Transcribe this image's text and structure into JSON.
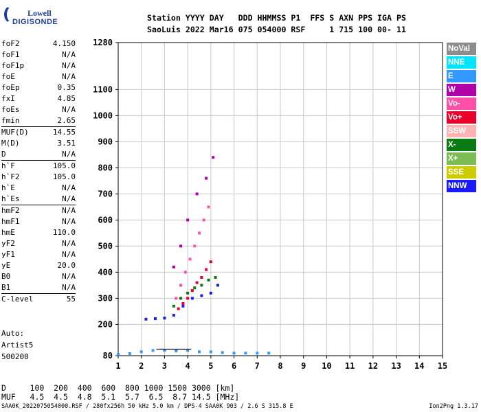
{
  "logo": {
    "line1": "Lowell",
    "line2": "DIGISONDE"
  },
  "header": {
    "labels": "Station YYYY DAY   DDD HHMMSS P1  FFS S AXN PPS IGA PS",
    "values": "SaoLuis 2022 Mar16 075 054000 RSF     1 715 100 00- 11"
  },
  "params": [
    [
      {
        "k": "foF2",
        "v": "4.150"
      },
      {
        "k": "foF1",
        "v": "N/A"
      },
      {
        "k": "foF1p",
        "v": "N/A"
      },
      {
        "k": "foE",
        "v": "N/A"
      },
      {
        "k": "foEp",
        "v": "0.35"
      },
      {
        "k": "fxI",
        "v": "4.85"
      },
      {
        "k": "foEs",
        "v": "N/A"
      },
      {
        "k": "fmin",
        "v": "2.65"
      }
    ],
    [
      {
        "k": "MUF(D)",
        "v": "14.55"
      },
      {
        "k": "M(D)",
        "v": "3.51"
      },
      {
        "k": "D",
        "v": "N/A"
      }
    ],
    [
      {
        "k": "h`F",
        "v": "105.0"
      },
      {
        "k": "h`F2",
        "v": "105.0"
      },
      {
        "k": "h`E",
        "v": "N/A"
      },
      {
        "k": "h`Es",
        "v": "N/A"
      }
    ],
    [
      {
        "k": "hmF2",
        "v": "N/A"
      },
      {
        "k": "hmF1",
        "v": "N/A"
      },
      {
        "k": "hmE",
        "v": "110.0"
      },
      {
        "k": "yF2",
        "v": "N/A"
      },
      {
        "k": "yF1",
        "v": "N/A"
      },
      {
        "k": "yE",
        "v": "20.0"
      },
      {
        "k": "B0",
        "v": "N/A"
      },
      {
        "k": "B1",
        "v": "N/A"
      }
    ],
    [
      {
        "k": "C-level",
        "v": "55"
      }
    ]
  ],
  "notes": {
    "auto": "Auto:",
    "artist": "Artist5",
    "code": "500200"
  },
  "legend": [
    {
      "label": "NoVal",
      "color": "#8c8c8c"
    },
    {
      "label": "NNE",
      "color": "#00e5ff"
    },
    {
      "label": "E",
      "color": "#3399ff"
    },
    {
      "label": "W",
      "color": "#b000a8"
    },
    {
      "label": "Vo-",
      "color": "#ff4fa8"
    },
    {
      "label": "Vo+",
      "color": "#e8002a"
    },
    {
      "label": "SSW",
      "color": "#ffb3b3"
    },
    {
      "label": "X-",
      "color": "#0a7a12"
    },
    {
      "label": "X+",
      "color": "#7dbb55"
    },
    {
      "label": "SSE",
      "color": "#cccc00"
    },
    {
      "label": "NNW",
      "color": "#1a1aff"
    }
  ],
  "bottom": {
    "d_row": "D     100  200  400  600  800 1000 1500 3000 [km]",
    "muf_row": "MUF   4.5  4.5  4.8  5.1  5.7  6.5  8.7 14.5 [MHz]"
  },
  "footer": {
    "left": "SAA0K_2022075054000.RSF / 280fx256h 50 kHz 5.0 km / DPS-4 SAA0K 903 / 2.6 S 315.8 E",
    "right": "Ion2Png 1.3.17"
  },
  "chart_data": {
    "type": "scatter",
    "xlabel": "",
    "ylabel": "",
    "xlim": [
      1,
      15
    ],
    "ylim": [
      80,
      1280
    ],
    "x_ticks": [
      1,
      2,
      3,
      4,
      5,
      6,
      7,
      8,
      9,
      10,
      11,
      12,
      13,
      14,
      15
    ],
    "y_ticks": [
      80,
      200,
      300,
      400,
      500,
      600,
      700,
      800,
      900,
      1000,
      1100,
      1280
    ],
    "grid": true,
    "legend_position": "right",
    "trace_x": [
      2.65,
      3.0,
      3.3,
      3.6,
      3.9,
      4.15
    ],
    "trace_y": [
      105,
      105,
      105,
      105,
      105,
      105
    ],
    "series": [
      {
        "name": "E",
        "x": [
          1.0,
          1.5,
          2.0,
          2.5,
          3.0,
          3.5,
          4.0,
          4.5,
          5.0,
          5.5,
          6.0,
          6.5,
          7.0,
          7.5
        ],
        "y": [
          85,
          88,
          95,
          100,
          100,
          98,
          100,
          95,
          95,
          92,
          90,
          90,
          90,
          90
        ]
      },
      {
        "name": "NNW",
        "x": [
          2.2,
          2.6,
          3.0,
          3.4,
          3.8,
          4.2,
          4.6,
          5.0,
          5.3
        ],
        "y": [
          220,
          222,
          224,
          235,
          270,
          300,
          310,
          320,
          350
        ]
      },
      {
        "name": "Vo+",
        "x": [
          3.6,
          3.8,
          4.0,
          4.2,
          4.4,
          4.6,
          4.8,
          5.0
        ],
        "y": [
          260,
          280,
          300,
          330,
          360,
          380,
          410,
          440
        ]
      },
      {
        "name": "Vo-",
        "x": [
          3.5,
          3.7,
          3.9,
          4.1,
          4.3,
          4.5,
          4.7,
          4.9
        ],
        "y": [
          300,
          350,
          400,
          450,
          500,
          550,
          600,
          650
        ]
      },
      {
        "name": "X-",
        "x": [
          3.4,
          3.7,
          4.0,
          4.3,
          4.6,
          4.9,
          5.2
        ],
        "y": [
          270,
          300,
          320,
          340,
          350,
          370,
          380
        ]
      },
      {
        "name": "W",
        "x": [
          3.4,
          3.7,
          4.0,
          4.4,
          4.8,
          5.1
        ],
        "y": [
          420,
          500,
          600,
          700,
          760,
          840
        ]
      }
    ]
  }
}
